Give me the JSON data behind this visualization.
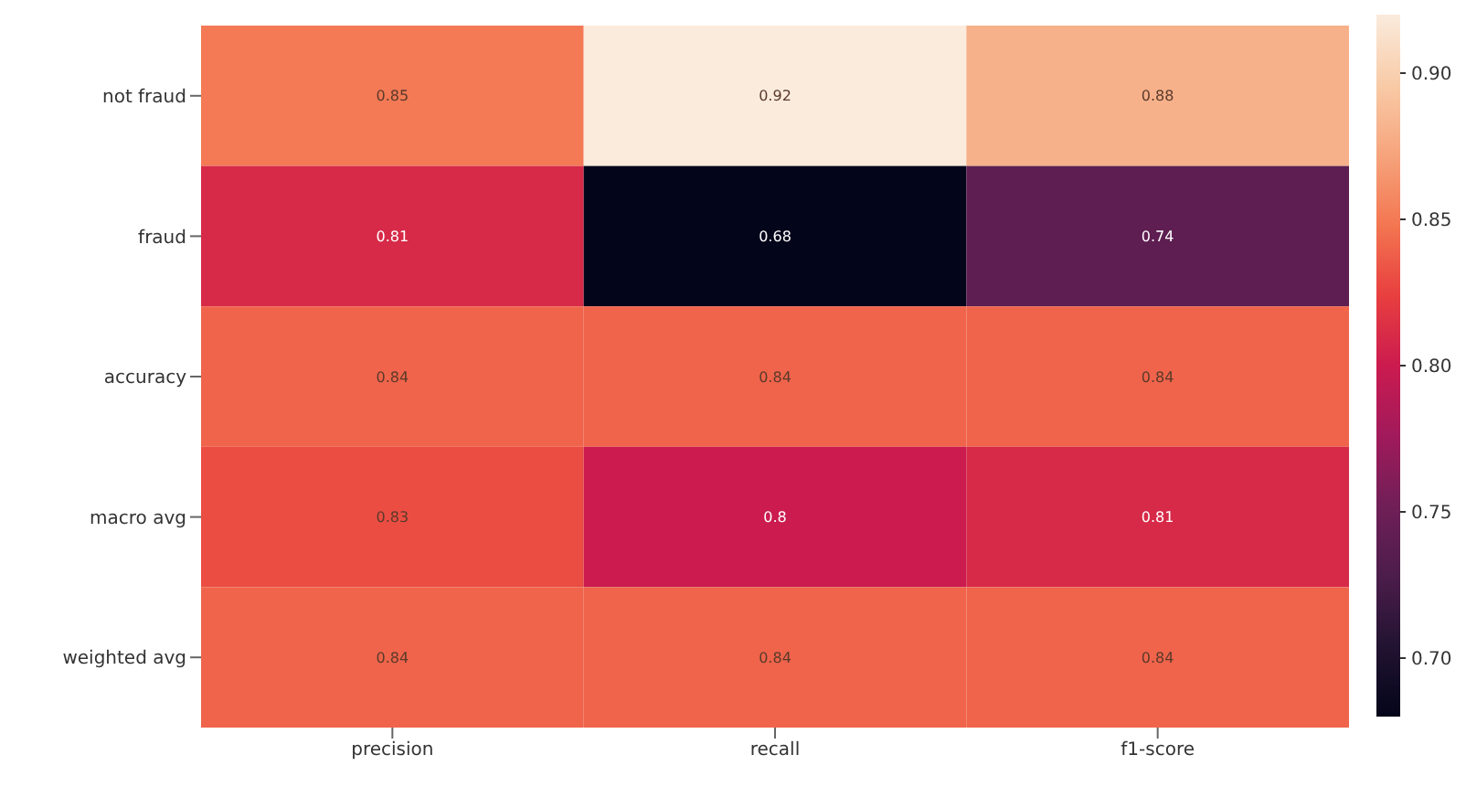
{
  "chart_data": {
    "type": "heatmap",
    "categories": [
      "precision",
      "recall",
      "f1-score"
    ],
    "y_categories": [
      "not fraud",
      "fraud",
      "accuracy",
      "macro avg",
      "weighted avg"
    ],
    "cells": [
      [
        0.85,
        0.92,
        0.88
      ],
      [
        0.81,
        0.68,
        0.74
      ],
      [
        0.84,
        0.84,
        0.84
      ],
      [
        0.83,
        0.8,
        0.81
      ],
      [
        0.84,
        0.84,
        0.84
      ]
    ],
    "clim": [
      0.68,
      0.92
    ],
    "cticks": [
      {
        "value": 0.7,
        "label": "0.70"
      },
      {
        "value": 0.75,
        "label": "0.75"
      },
      {
        "value": 0.8,
        "label": "0.80"
      },
      {
        "value": 0.85,
        "label": "0.85"
      },
      {
        "value": 0.9,
        "label": "0.90"
      }
    ],
    "data_labels": true
  }
}
